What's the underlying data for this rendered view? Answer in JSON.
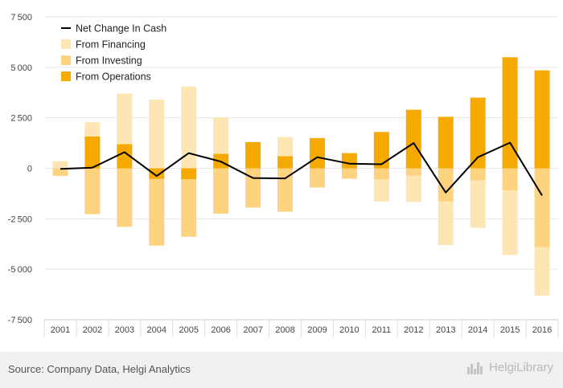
{
  "chart_data": {
    "type": "bar",
    "stacked": true,
    "categories": [
      "2001",
      "2002",
      "2003",
      "2004",
      "2005",
      "2006",
      "2007",
      "2008",
      "2009",
      "2010",
      "2011",
      "2012",
      "2013",
      "2014",
      "2015",
      "2016"
    ],
    "series": [
      {
        "name": "From Operations",
        "type": "bar",
        "color": "#f6aa00",
        "values": [
          0,
          1580,
          1200,
          -530,
          -540,
          720,
          1300,
          600,
          1500,
          750,
          1800,
          2900,
          2550,
          3500,
          5500,
          4850
        ]
      },
      {
        "name": "From Investing",
        "type": "bar",
        "color": "#fdd37f",
        "values": [
          -380,
          -2270,
          -2900,
          -3300,
          -2850,
          -2250,
          -1950,
          -2150,
          -950,
          -520,
          -550,
          -370,
          -1650,
          -600,
          -1100,
          -3900
        ]
      },
      {
        "name": "From Financing",
        "type": "bar",
        "color": "#fde6b4",
        "values": [
          350,
          700,
          2500,
          3400,
          4050,
          1800,
          0,
          950,
          0,
          0,
          -1100,
          -1300,
          -2150,
          -2350,
          -3200,
          -2400
        ]
      },
      {
        "name": "Net Change In Cash",
        "type": "line",
        "color": "#000000",
        "values": [
          -30,
          30,
          800,
          -380,
          750,
          330,
          -480,
          -500,
          550,
          230,
          200,
          1250,
          -1200,
          550,
          1270,
          -1350
        ]
      }
    ],
    "legend_order": [
      "Net Change In Cash",
      "From Financing",
      "From Investing",
      "From Operations"
    ],
    "yticks": [
      -7500,
      -5000,
      -2500,
      0,
      2500,
      5000,
      7500
    ],
    "ylim": [
      -7500,
      7500
    ],
    "grid": true,
    "legend_position": "top-left",
    "title": "",
    "xlabel": "",
    "ylabel": ""
  },
  "footer": {
    "source": "Source: Company Data, Helgi Analytics",
    "brand": "HelgiLibrary"
  }
}
